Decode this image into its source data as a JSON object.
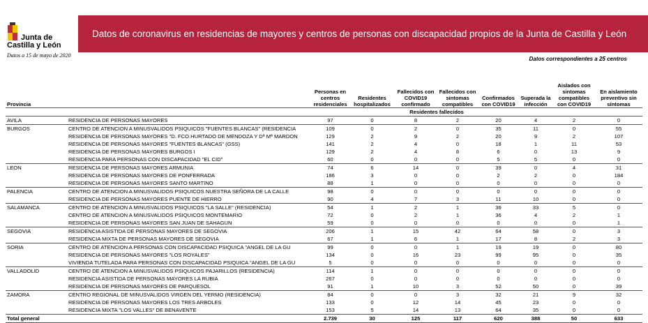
{
  "header": {
    "logo": [
      "Junta de",
      "Castilla y León"
    ],
    "title": "Datos de coronavirus en residencias de mayores y centros de personas con discapacidad propios de la Junta de Castilla y León",
    "date": "Datos a 15 de mayo de 2020",
    "note": "Datos correspondientes a 25 centros"
  },
  "table": {
    "columns": [
      "Provincia",
      "Personas en centros residenciales",
      "Residentes hospitalizados",
      "Fallecidos con COVID19 confirmado",
      "Fallecidos con sintomas compatibles",
      "Confirmados con COVID19",
      "Superada la infección",
      "Aislados con sintomas compatibles con COVID19",
      "En aislamiento preventivo sin síntomas"
    ],
    "subheader": "Residentes fallecidos",
    "groups": [
      {
        "province": "AVILA",
        "rows": [
          {
            "name": "RESIDENCIA DE PERSONAS MAYORES",
            "values": [
              97,
              0,
              8,
              2,
              20,
              4,
              2,
              0
            ]
          }
        ]
      },
      {
        "province": "BURGOS",
        "rows": [
          {
            "name": "CENTRO DE ATENCION A MINUSVALIDOS PSIQUICOS \"FUENTES BLANCAS\" (RESIDENCIA",
            "values": [
              109,
              0,
              2,
              0,
              35,
              11,
              0,
              55
            ]
          },
          {
            "name": "RESIDENCIA DE PERSONAS MAYORES \"D. FCO.HURTADO DE MENDOZA Y Dª Mª MARDON",
            "values": [
              129,
              2,
              9,
              2,
              20,
              9,
              2,
              107
            ]
          },
          {
            "name": "RESIDENCIA DE PERSONAS MAYORES \"FUENTES BLANCAS\" (GSS)",
            "values": [
              141,
              2,
              4,
              0,
              18,
              1,
              11,
              53
            ]
          },
          {
            "name": "RESIDENCIA DE PERSONAS MAYORES BURGOS I",
            "values": [
              129,
              2,
              4,
              8,
              6,
              0,
              13,
              9
            ]
          },
          {
            "name": "RESIDENCIA PARA PERSONAS CON DISCAPACIDAD  \"EL CID\"",
            "values": [
              60,
              0,
              0,
              0,
              5,
              5,
              0,
              0
            ]
          }
        ]
      },
      {
        "province": "LEON",
        "rows": [
          {
            "name": "RESIDENCIA DE PERSONAS MAYORES ARMUNIA",
            "values": [
              74,
              6,
              14,
              0,
              39,
              0,
              4,
              31
            ]
          },
          {
            "name": "RESIDENCIA DE PERSONAS MAYORES DE PONFERRADA",
            "values": [
              186,
              3,
              0,
              0,
              2,
              2,
              0,
              184
            ]
          },
          {
            "name": "RESIDENCIA DE PERSONAS MAYORES SANTO MARTINO",
            "values": [
              88,
              1,
              0,
              0,
              0,
              0,
              0,
              0
            ]
          }
        ]
      },
      {
        "province": "PALENCIA",
        "rows": [
          {
            "name": "CENTRO DE ATENCION A MINUSVALIDOS PSIQUICOS NUESTRA SEÑORA DE LA CALLE",
            "values": [
              98,
              0,
              0,
              0,
              0,
              0,
              0,
              0
            ]
          },
          {
            "name": "RESIDENCIA DE PERSONAS MAYORES PUENTE DE HIERRO",
            "values": [
              90,
              4,
              7,
              3,
              11,
              10,
              0,
              0
            ]
          }
        ]
      },
      {
        "province": "SALAMANCA",
        "rows": [
          {
            "name": "CENTRO DE ATENCION A MINUSVALIDOS PSIQUICOS \"LA SALLE\" (RESIDENCIA)",
            "values": [
              54,
              1,
              2,
              1,
              36,
              33,
              5,
              0
            ]
          },
          {
            "name": "CENTRO DE ATENCION A MINUSVALIDOS PSIQUICOS MONTEMARIO",
            "values": [
              72,
              0,
              2,
              1,
              36,
              4,
              2,
              1
            ]
          },
          {
            "name": "RESIDENCIA DE PERSONAS MAYORES SAN JUAN DE SAHAGUN",
            "values": [
              59,
              0,
              0,
              0,
              0,
              0,
              0,
              1
            ]
          }
        ]
      },
      {
        "province": "SEGOVIA",
        "rows": [
          {
            "name": "RESIDENCIA ASISTIDA DE PERSONAS MAYORES DE SEGOVIA",
            "values": [
              206,
              1,
              15,
              42,
              64,
              58,
              0,
              3
            ]
          },
          {
            "name": "RESIDENCIA MIXTA DE PERSONAS MAYORES DE SEGOVIA",
            "values": [
              67,
              1,
              6,
              1,
              17,
              8,
              2,
              3
            ]
          }
        ]
      },
      {
        "province": "SORIA",
        "rows": [
          {
            "name": "CENTRO DE ATENCION A PERSONAS CON DISCAPACIDAD PSIQUICA \"ANGEL DE LA GU",
            "values": [
              99,
              0,
              0,
              1,
              19,
              19,
              0,
              80
            ]
          },
          {
            "name": "RESIDENCIA DE PERSONAS MAYORES \"LOS ROYALES\"",
            "values": [
              134,
              0,
              16,
              23,
              99,
              95,
              0,
              35
            ]
          },
          {
            "name": "VIVIENDA TUTELADA PARA PERSONAS CON DISCAPACIDAD PSIQUICA \"ANGEL DE LA GU",
            "values": [
              5,
              0,
              0,
              0,
              0,
              0,
              0,
              0
            ]
          }
        ]
      },
      {
        "province": "VALLADOLID",
        "rows": [
          {
            "name": "CENTRO DE ATENCION A MINUSVALIDOS PSIQUICOS PAJARILLOS (RESIDENCIA)",
            "values": [
              114,
              1,
              0,
              0,
              0,
              0,
              0,
              0
            ]
          },
          {
            "name": "RESIDENCIA ASISTIDA DE PERSONAS MAYORES LA RUBIA",
            "values": [
              267,
              0,
              0,
              0,
              0,
              0,
              0,
              0
            ]
          },
          {
            "name": "RESIDENCIA DE PERSONAS MAYORES DE PARQUESOL",
            "values": [
              91,
              1,
              10,
              3,
              52,
              50,
              0,
              39
            ]
          }
        ]
      },
      {
        "province": "ZAMORA",
        "rows": [
          {
            "name": "CENTRO REGIONAL DE MINUSVALIDOS VIRGEN DEL YERMO (RESIDENCIA)",
            "values": [
              84,
              0,
              0,
              3,
              32,
              21,
              9,
              32
            ]
          },
          {
            "name": "RESIDENCIA DE PERSONAS MAYORES LOS TRES ARBOLES",
            "values": [
              133,
              0,
              12,
              14,
              45,
              23,
              0,
              0
            ]
          },
          {
            "name": "RESIDENCIA MIXTA \"LOS VALLES\" DE BENAVENTE",
            "values": [
              153,
              5,
              14,
              13,
              64,
              35,
              0,
              0
            ]
          }
        ]
      }
    ],
    "total": {
      "label": "Total general",
      "values": [
        "2.739",
        30,
        125,
        117,
        620,
        388,
        50,
        633
      ]
    }
  }
}
